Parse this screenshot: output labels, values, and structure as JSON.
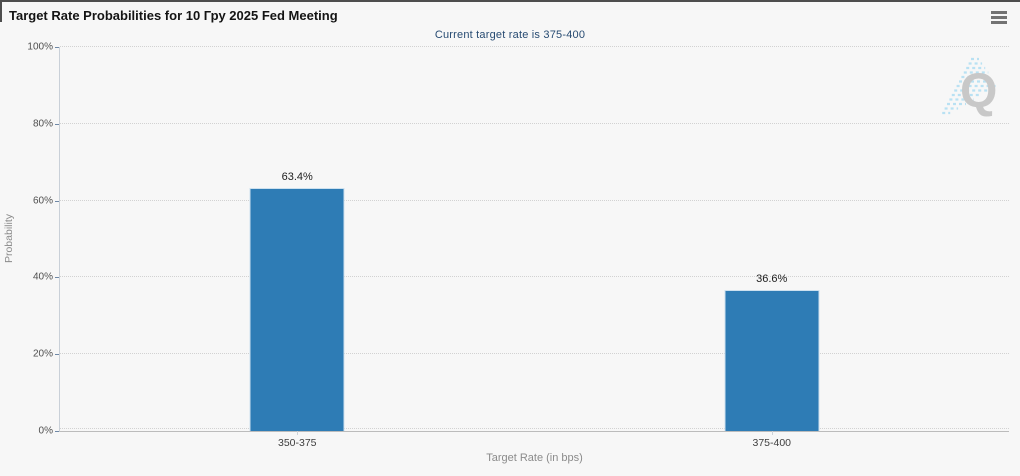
{
  "header": {
    "title": "Target Rate Probabilities for 10 Гру 2025 Fed Meeting",
    "menu_icon": "hamburger-icon"
  },
  "chart_data": {
    "type": "bar",
    "title": "Target Rate Probabilities for 10 Гру 2025 Fed Meeting",
    "subtitle": "Current target rate is 375-400",
    "categories": [
      "350-375",
      "375-400"
    ],
    "values": [
      63.4,
      36.6
    ],
    "value_labels": [
      "63.4%",
      "36.6%"
    ],
    "xlabel": "Target Rate (in bps)",
    "ylabel": "Probability",
    "ylim": [
      0,
      100
    ],
    "yticks": [
      0,
      20,
      40,
      60,
      80,
      100
    ],
    "ytick_labels": [
      "0%",
      "20%",
      "40%",
      "60%",
      "80%",
      "100%"
    ],
    "grid": "horizontal-dotted",
    "legend": "none"
  },
  "watermark": {
    "letter": "Q"
  },
  "colors": {
    "background": "#f7f7f7",
    "bar": "#2e7cb5",
    "bar_border": "#cde1ef",
    "subtitle_text": "#274b72",
    "title_text": "#141414",
    "grid": "#d2d2d2",
    "y_axis_line": "#c9d0d8",
    "x_axis_line": "#bcbcbc",
    "tick_mark": "#6f88a6",
    "axis_title_text": "#8b8b8b",
    "watermark_letter": "#c8c8c8",
    "watermark_stripes": "#b9e1f3",
    "menu_icon": "#737373",
    "panel_border": "#4e4e4e"
  }
}
